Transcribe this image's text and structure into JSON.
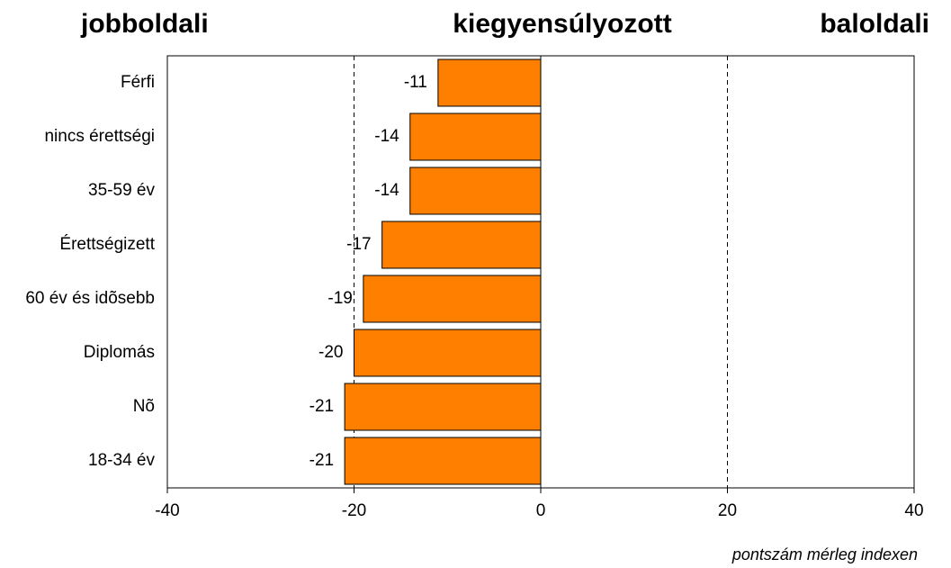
{
  "chart_data": {
    "type": "bar",
    "orientation": "horizontal",
    "annotations": [
      "jobboldali",
      "kiegyensúlyozott",
      "baloldali"
    ],
    "xlabel": "pontszám mérleg indexen",
    "categories": [
      "Férfi",
      "nincs érettségi",
      "35-59 év",
      "Érettségizett",
      "60 év és idõsebb",
      "Diplomás",
      "Nõ",
      "18-34 év"
    ],
    "values": [
      -11,
      -14,
      -14,
      -17,
      -19,
      -20,
      -21,
      -21
    ],
    "color": "#ff8000",
    "xlim": [
      -40,
      40
    ],
    "xticks": [
      -40,
      -20,
      0,
      20,
      40
    ],
    "grid": true
  }
}
